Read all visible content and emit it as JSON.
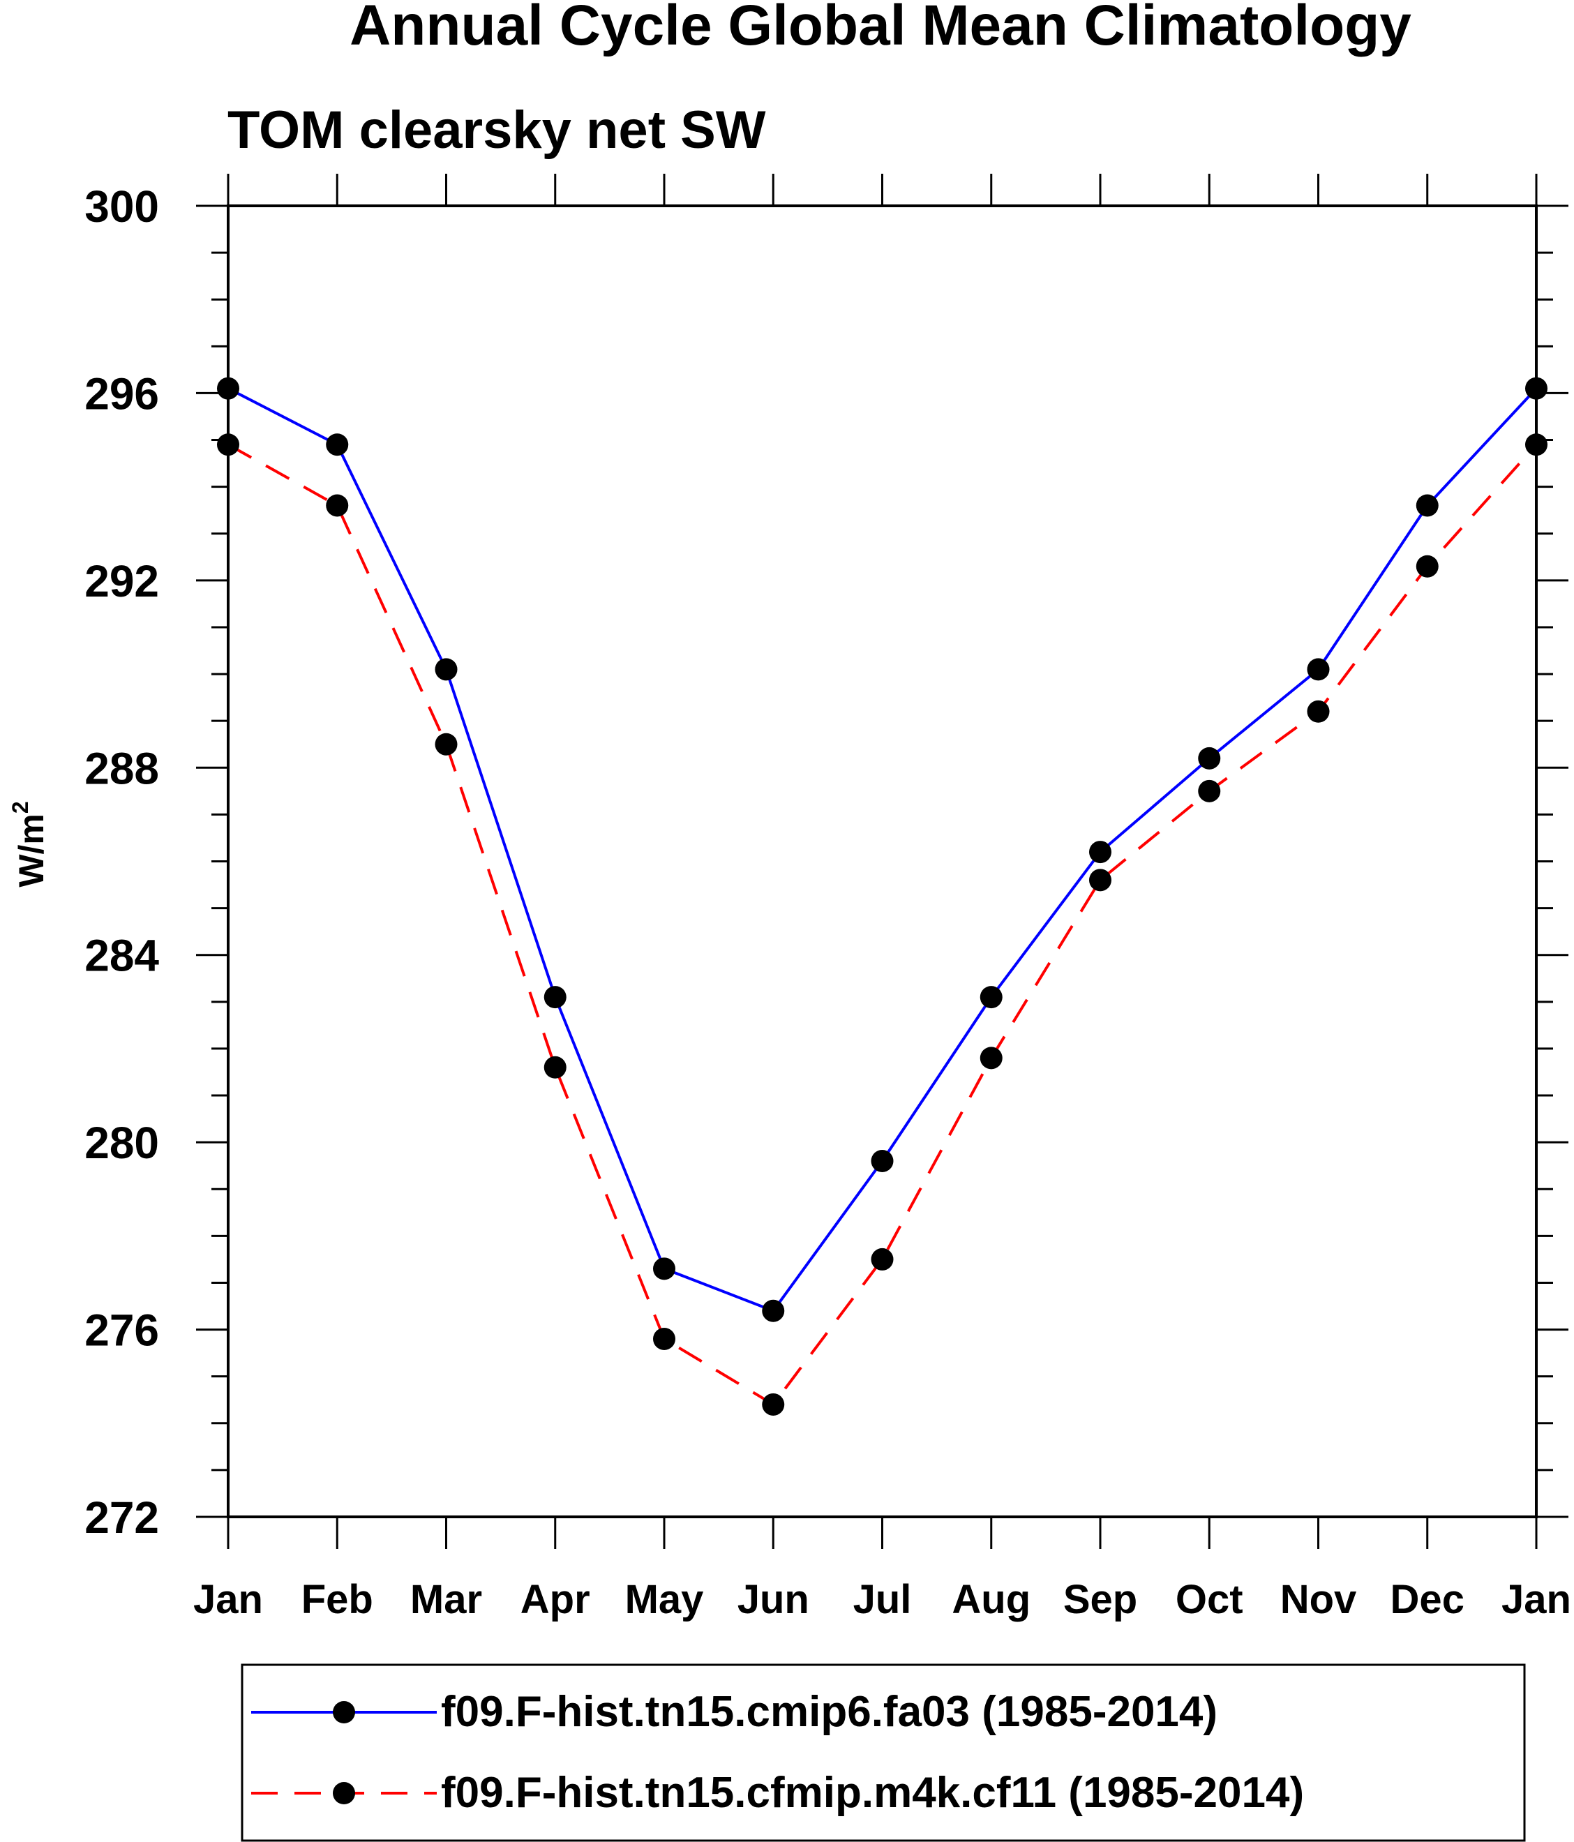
{
  "chart_data": {
    "type": "line",
    "title": "Annual Cycle Global Mean Climatology",
    "subtitle": "TOM clearsky net SW",
    "xlabel": "",
    "ylabel": "W/m",
    "ylabel_superscript": "2",
    "categories": [
      "Jan",
      "Feb",
      "Mar",
      "Apr",
      "May",
      "Jun",
      "Jul",
      "Aug",
      "Sep",
      "Oct",
      "Nov",
      "Dec",
      "Jan"
    ],
    "ylim": [
      272,
      300
    ],
    "yticks": [
      "272",
      "276",
      "280",
      "284",
      "288",
      "292",
      "296",
      "300"
    ],
    "grid": false,
    "legend_position": "bottom",
    "series": [
      {
        "name": "f09.F-hist.tn15.cmip6.fa03 (1985-2014)",
        "color": "#0000ff",
        "line_style": "solid",
        "marker": "filled-circle",
        "values": [
          296.1,
          294.9,
          290.1,
          283.1,
          277.3,
          276.4,
          279.6,
          283.1,
          286.2,
          288.2,
          290.1,
          293.6,
          296.1
        ]
      },
      {
        "name": "f09.F-hist.tn15.cfmip.m4k.cf11 (1985-2014)",
        "color": "#ff0000",
        "line_style": "dashed",
        "marker": "filled-circle",
        "values": [
          294.9,
          293.6,
          288.5,
          281.6,
          275.8,
          274.4,
          277.5,
          281.8,
          285.6,
          287.5,
          289.2,
          292.3,
          294.9
        ]
      }
    ]
  }
}
